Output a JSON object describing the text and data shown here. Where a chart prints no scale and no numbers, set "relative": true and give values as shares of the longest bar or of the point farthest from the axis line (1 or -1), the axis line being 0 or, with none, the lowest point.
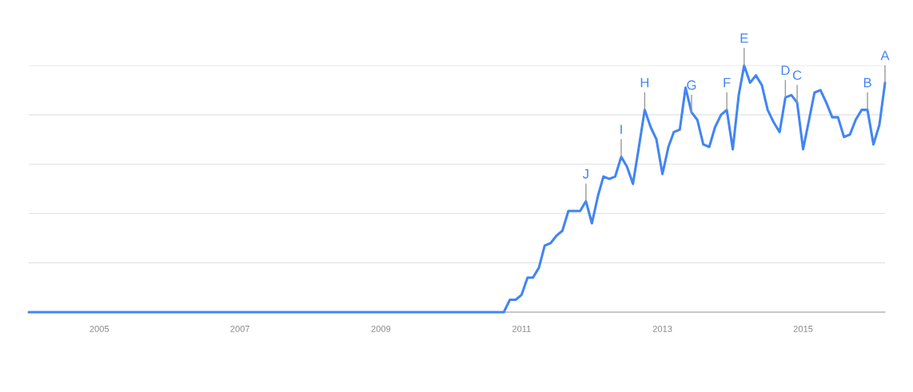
{
  "chart_data": {
    "type": "line",
    "relative": true,
    "grid": "y",
    "legend": false,
    "marker": "none",
    "line_style": "solid",
    "x": [
      "2004-01",
      "2004-02",
      "2004-03",
      "2004-04",
      "2004-05",
      "2004-06",
      "2004-07",
      "2004-08",
      "2004-09",
      "2004-10",
      "2004-11",
      "2004-12",
      "2005-01",
      "2005-02",
      "2005-03",
      "2005-04",
      "2005-05",
      "2005-06",
      "2005-07",
      "2005-08",
      "2005-09",
      "2005-10",
      "2005-11",
      "2005-12",
      "2006-01",
      "2006-02",
      "2006-03",
      "2006-04",
      "2006-05",
      "2006-06",
      "2006-07",
      "2006-08",
      "2006-09",
      "2006-10",
      "2006-11",
      "2006-12",
      "2007-01",
      "2007-02",
      "2007-03",
      "2007-04",
      "2007-05",
      "2007-06",
      "2007-07",
      "2007-08",
      "2007-09",
      "2007-10",
      "2007-11",
      "2007-12",
      "2008-01",
      "2008-02",
      "2008-03",
      "2008-04",
      "2008-05",
      "2008-06",
      "2008-07",
      "2008-08",
      "2008-09",
      "2008-10",
      "2008-11",
      "2008-12",
      "2009-01",
      "2009-02",
      "2009-03",
      "2009-04",
      "2009-05",
      "2009-06",
      "2009-07",
      "2009-08",
      "2009-09",
      "2009-10",
      "2009-11",
      "2009-12",
      "2010-01",
      "2010-02",
      "2010-03",
      "2010-04",
      "2010-05",
      "2010-06",
      "2010-07",
      "2010-08",
      "2010-09",
      "2010-10",
      "2010-11",
      "2010-12",
      "2011-01",
      "2011-02",
      "2011-03",
      "2011-04",
      "2011-05",
      "2011-06",
      "2011-07",
      "2011-08",
      "2011-09",
      "2011-10",
      "2011-11",
      "2011-12",
      "2012-01",
      "2012-02",
      "2012-03",
      "2012-04",
      "2012-05",
      "2012-06",
      "2012-07",
      "2012-08",
      "2012-09",
      "2012-10",
      "2012-11",
      "2012-12",
      "2013-01",
      "2013-02",
      "2013-03",
      "2013-04",
      "2013-05",
      "2013-06",
      "2013-07",
      "2013-08",
      "2013-09",
      "2013-10",
      "2013-11",
      "2013-12",
      "2014-01",
      "2014-02",
      "2014-03",
      "2014-04",
      "2014-05",
      "2014-06",
      "2014-07",
      "2014-08",
      "2014-09",
      "2014-10",
      "2014-11",
      "2014-12",
      "2015-01",
      "2015-02",
      "2015-03",
      "2015-04",
      "2015-05",
      "2015-06",
      "2015-07",
      "2015-08",
      "2015-09",
      "2015-10",
      "2015-11",
      "2015-12",
      "2016-01",
      "2016-02",
      "2016-03"
    ],
    "series": [
      {
        "color": "#4285f4",
        "values": [
          0,
          0,
          0,
          0,
          0,
          0,
          0,
          0,
          0,
          0,
          0,
          0,
          0,
          0,
          0,
          0,
          0,
          0,
          0,
          0,
          0,
          0,
          0,
          0,
          0,
          0,
          0,
          0,
          0,
          0,
          0,
          0,
          0,
          0,
          0,
          0,
          0,
          0,
          0,
          0,
          0,
          0,
          0,
          0,
          0,
          0,
          0,
          0,
          0,
          0,
          0,
          0,
          0,
          0,
          0,
          0,
          0,
          0,
          0,
          0,
          0,
          0,
          0,
          0,
          0,
          0,
          0,
          0,
          0,
          0,
          0,
          0,
          0,
          0,
          0,
          0,
          0,
          0,
          0,
          0,
          0,
          0,
          0.05,
          0.05,
          0.07,
          0.14,
          0.14,
          0.18,
          0.27,
          0.28,
          0.31,
          0.33,
          0.41,
          0.41,
          0.41,
          0.45,
          0.36,
          0.47,
          0.55,
          0.54,
          0.55,
          0.63,
          0.59,
          0.52,
          0.67,
          0.82,
          0.75,
          0.7,
          0.56,
          0.67,
          0.73,
          0.74,
          0.91,
          0.81,
          0.78,
          0.68,
          0.67,
          0.75,
          0.8,
          0.82,
          0.66,
          0.88,
          1.0,
          0.93,
          0.96,
          0.92,
          0.82,
          0.77,
          0.73,
          0.87,
          0.88,
          0.85,
          0.66,
          0.78,
          0.89,
          0.9,
          0.85,
          0.79,
          0.79,
          0.71,
          0.72,
          0.78,
          0.82,
          0.82,
          0.68,
          0.76,
          0.93
        ]
      }
    ],
    "xlim": [
      "2004-01",
      "2016-03"
    ],
    "xticks": [
      "2005",
      "2007",
      "2009",
      "2011",
      "2013",
      "2015"
    ],
    "annotations": [
      {
        "text": "J",
        "x": "2011-12",
        "y": 0.45
      },
      {
        "text": "I",
        "x": "2012-06",
        "y": 0.63
      },
      {
        "text": "H",
        "x": "2012-10",
        "y": 0.82
      },
      {
        "text": "G",
        "x": "2013-06",
        "y": 0.81
      },
      {
        "text": "F",
        "x": "2013-12",
        "y": 0.82
      },
      {
        "text": "E",
        "x": "2014-03",
        "y": 1.0
      },
      {
        "text": "D",
        "x": "2014-10",
        "y": 0.87
      },
      {
        "text": "C",
        "x": "2014-12",
        "y": 0.85
      },
      {
        "text": "B",
        "x": "2015-12",
        "y": 0.82
      },
      {
        "text": "A",
        "x": "2016-03",
        "y": 0.93
      }
    ]
  }
}
